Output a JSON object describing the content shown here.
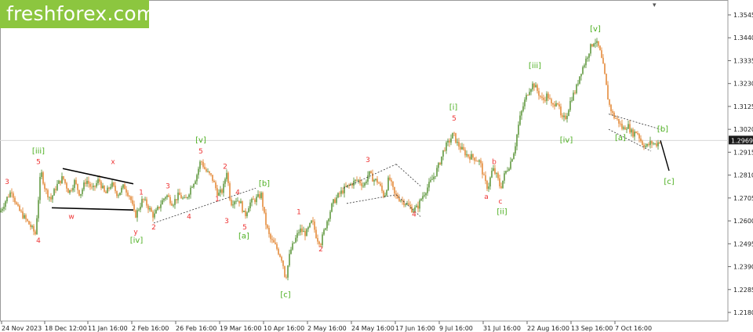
{
  "brand": {
    "logo_text": "freshforex.com"
  },
  "chart_data": {
    "type": "candlestick",
    "y_ticks": [
      "1.3545",
      "1.3440",
      "1.3335",
      "1.3230",
      "1.3125",
      "1.3020",
      "1.2915",
      "1.2810",
      "1.2705",
      "1.2600",
      "1.2495",
      "1.2390",
      "1.2285",
      "1.2180"
    ],
    "x_ticks": [
      "24 Nov 2023",
      "18 Dec 12:00",
      "11 Jan 16:00",
      "2 Feb 16:00",
      "26 Feb 16:00",
      "19 Mar 16:00",
      "10 Apr 16:00",
      "2 May 16:00",
      "24 May 16:00",
      "17 Jun 16:00",
      "9 Jul 16:00",
      "31 Jul 16:00",
      "22 Aug 16:00",
      "13 Sep 16:00",
      "7 Oct 16:00"
    ],
    "ylim": [
      1.218,
      1.3545
    ],
    "current_price": "1.2969",
    "price_path": [
      [
        0,
        1.264
      ],
      [
        8,
        1.27
      ],
      [
        15,
        1.274
      ],
      [
        22,
        1.266
      ],
      [
        30,
        1.262
      ],
      [
        38,
        1.258
      ],
      [
        45,
        1.254
      ],
      [
        48,
        1.266
      ],
      [
        52,
        1.283
      ],
      [
        58,
        1.274
      ],
      [
        65,
        1.27
      ],
      [
        72,
        1.276
      ],
      [
        80,
        1.28
      ],
      [
        88,
        1.273
      ],
      [
        95,
        1.278
      ],
      [
        102,
        1.272
      ],
      [
        110,
        1.279
      ],
      [
        118,
        1.274
      ],
      [
        126,
        1.279
      ],
      [
        134,
        1.272
      ],
      [
        142,
        1.277
      ],
      [
        150,
        1.272
      ],
      [
        158,
        1.276
      ],
      [
        166,
        1.271
      ],
      [
        172,
        1.262
      ],
      [
        176,
        1.265
      ],
      [
        182,
        1.27
      ],
      [
        188,
        1.267
      ],
      [
        196,
        1.262
      ],
      [
        205,
        1.268
      ],
      [
        212,
        1.272
      ],
      [
        220,
        1.268
      ],
      [
        228,
        1.272
      ],
      [
        236,
        1.269
      ],
      [
        244,
        1.276
      ],
      [
        250,
        1.28
      ],
      [
        256,
        1.288
      ],
      [
        262,
        1.283
      ],
      [
        270,
        1.28
      ],
      [
        278,
        1.272
      ],
      [
        284,
        1.274
      ],
      [
        289,
        1.283
      ],
      [
        294,
        1.268
      ],
      [
        300,
        1.27
      ],
      [
        306,
        1.269
      ],
      [
        312,
        1.262
      ],
      [
        318,
        1.268
      ],
      [
        326,
        1.27
      ],
      [
        333,
        1.272
      ],
      [
        338,
        1.26
      ],
      [
        344,
        1.252
      ],
      [
        352,
        1.248
      ],
      [
        360,
        1.242
      ],
      [
        364,
        1.233
      ],
      [
        370,
        1.246
      ],
      [
        376,
        1.251
      ],
      [
        382,
        1.256
      ],
      [
        390,
        1.254
      ],
      [
        398,
        1.26
      ],
      [
        404,
        1.252
      ],
      [
        409,
        1.25
      ],
      [
        416,
        1.259
      ],
      [
        424,
        1.268
      ],
      [
        432,
        1.272
      ],
      [
        440,
        1.275
      ],
      [
        448,
        1.277
      ],
      [
        456,
        1.279
      ],
      [
        464,
        1.276
      ],
      [
        470,
        1.282
      ],
      [
        476,
        1.279
      ],
      [
        482,
        1.278
      ],
      [
        490,
        1.271
      ],
      [
        496,
        1.28
      ],
      [
        503,
        1.272
      ],
      [
        510,
        1.27
      ],
      [
        518,
        1.268
      ],
      [
        526,
        1.265
      ],
      [
        532,
        1.266
      ],
      [
        538,
        1.271
      ],
      [
        546,
        1.276
      ],
      [
        554,
        1.281
      ],
      [
        560,
        1.286
      ],
      [
        566,
        1.293
      ],
      [
        572,
        1.296
      ],
      [
        578,
        1.3
      ],
      [
        582,
        1.296
      ],
      [
        588,
        1.293
      ],
      [
        596,
        1.29
      ],
      [
        604,
        1.289
      ],
      [
        612,
        1.287
      ],
      [
        618,
        1.278
      ],
      [
        622,
        1.275
      ],
      [
        628,
        1.284
      ],
      [
        634,
        1.28
      ],
      [
        638,
        1.275
      ],
      [
        644,
        1.282
      ],
      [
        650,
        1.286
      ],
      [
        656,
        1.293
      ],
      [
        662,
        1.306
      ],
      [
        668,
        1.314
      ],
      [
        674,
        1.32
      ],
      [
        680,
        1.323
      ],
      [
        686,
        1.319
      ],
      [
        692,
        1.315
      ],
      [
        698,
        1.318
      ],
      [
        704,
        1.312
      ],
      [
        710,
        1.316
      ],
      [
        716,
        1.306
      ],
      [
        722,
        1.308
      ],
      [
        728,
        1.316
      ],
      [
        734,
        1.32
      ],
      [
        740,
        1.328
      ],
      [
        746,
        1.333
      ],
      [
        752,
        1.339
      ],
      [
        758,
        1.343
      ],
      [
        764,
        1.339
      ],
      [
        770,
        1.329
      ],
      [
        776,
        1.314
      ],
      [
        782,
        1.308
      ],
      [
        788,
        1.306
      ],
      [
        794,
        1.302
      ],
      [
        800,
        1.304
      ],
      [
        806,
        1.3
      ],
      [
        812,
        1.301
      ],
      [
        818,
        1.296
      ],
      [
        824,
        1.294
      ],
      [
        830,
        1.296
      ],
      [
        836,
        1.295
      ],
      [
        842,
        1.2969
      ]
    ],
    "wave_labels": [
      {
        "text": "[iii]",
        "t": 49,
        "p": 1.291,
        "color": "#4caf20"
      },
      {
        "text": "5",
        "t": 49,
        "p": 1.286,
        "color": "#e33"
      },
      {
        "text": "3",
        "t": 9,
        "p": 1.277,
        "color": "#e33"
      },
      {
        "text": "4",
        "t": 49,
        "p": 1.25,
        "color": "#e33"
      },
      {
        "text": "x",
        "t": 144,
        "p": 1.286,
        "color": "#e33"
      },
      {
        "text": "w",
        "t": 91,
        "p": 1.261,
        "color": "#e33"
      },
      {
        "text": "y",
        "t": 173,
        "p": 1.254,
        "color": "#e33"
      },
      {
        "text": "[iv]",
        "t": 174,
        "p": 1.25,
        "color": "#4caf20"
      },
      {
        "text": "1",
        "t": 180,
        "p": 1.272,
        "color": "#e33"
      },
      {
        "text": "2",
        "t": 196,
        "p": 1.256,
        "color": "#e33"
      },
      {
        "text": "3",
        "t": 214,
        "p": 1.275,
        "color": "#e33"
      },
      {
        "text": "4",
        "t": 241,
        "p": 1.261,
        "color": "#e33"
      },
      {
        "text": "[v]",
        "t": 256,
        "p": 1.296,
        "color": "#4caf20"
      },
      {
        "text": "5",
        "t": 256,
        "p": 1.291,
        "color": "#e33"
      },
      {
        "text": "1",
        "t": 277,
        "p": 1.269,
        "color": "#e33"
      },
      {
        "text": "2",
        "t": 287,
        "p": 1.284,
        "color": "#e33"
      },
      {
        "text": "3",
        "t": 289,
        "p": 1.259,
        "color": "#e33"
      },
      {
        "text": "4",
        "t": 303,
        "p": 1.272,
        "color": "#e33"
      },
      {
        "text": "5",
        "t": 312,
        "p": 1.256,
        "color": "#e33"
      },
      {
        "text": "[a]",
        "t": 311,
        "p": 1.252,
        "color": "#4caf20"
      },
      {
        "text": "[b]",
        "t": 337,
        "p": 1.276,
        "color": "#4caf20"
      },
      {
        "text": "1",
        "t": 381,
        "p": 1.263,
        "color": "#e33"
      },
      {
        "text": "2",
        "t": 409,
        "p": 1.246,
        "color": "#e33"
      },
      {
        "text": "[c]",
        "t": 364,
        "p": 1.225,
        "color": "#4caf20"
      },
      {
        "text": "3",
        "t": 469,
        "p": 1.287,
        "color": "#e33"
      },
      {
        "text": "4",
        "t": 528,
        "p": 1.262,
        "color": "#e33"
      },
      {
        "text": "[i]",
        "t": 578,
        "p": 1.311,
        "color": "#4caf20"
      },
      {
        "text": "5",
        "t": 579,
        "p": 1.306,
        "color": "#e33"
      },
      {
        "text": "b",
        "t": 630,
        "p": 1.286,
        "color": "#e33"
      },
      {
        "text": "a",
        "t": 620,
        "p": 1.27,
        "color": "#e33"
      },
      {
        "text": "c",
        "t": 638,
        "p": 1.268,
        "color": "#e33"
      },
      {
        "text": "[ii]",
        "t": 640,
        "p": 1.263,
        "color": "#4caf20"
      },
      {
        "text": "[iii]",
        "t": 682,
        "p": 1.33,
        "color": "#4caf20"
      },
      {
        "text": "[iv]",
        "t": 722,
        "p": 1.296,
        "color": "#4caf20"
      },
      {
        "text": "[v]",
        "t": 759,
        "p": 1.347,
        "color": "#4caf20"
      },
      {
        "text": "[a]",
        "t": 791,
        "p": 1.297,
        "color": "#4caf20"
      },
      {
        "text": "[b]",
        "t": 845,
        "p": 1.301,
        "color": "#4caf20"
      },
      {
        "text": "[c]",
        "t": 853,
        "p": 1.277,
        "color": "#4caf20"
      }
    ],
    "solid_lines": [
      {
        "t1": 80,
        "p1": 1.284,
        "t2": 170,
        "p2": 1.277,
        "color": "#000000",
        "w": 1.6
      },
      {
        "t1": 66,
        "p1": 1.266,
        "t2": 170,
        "p2": 1.265,
        "color": "#000000",
        "w": 1.6
      },
      {
        "t1": 842,
        "p1": 1.2969,
        "t2": 853,
        "p2": 1.283,
        "color": "#000000",
        "w": 1.4
      }
    ],
    "dotted_lines": [
      {
        "t1": 196,
        "p1": 1.259,
        "t2": 326,
        "p2": 1.275
      },
      {
        "t1": 438,
        "p1": 1.275,
        "t2": 505,
        "p2": 1.286
      },
      {
        "t1": 442,
        "p1": 1.268,
        "t2": 505,
        "p2": 1.272
      },
      {
        "t1": 505,
        "p1": 1.286,
        "t2": 536,
        "p2": 1.276
      },
      {
        "t1": 505,
        "p1": 1.272,
        "t2": 536,
        "p2": 1.262
      },
      {
        "t1": 776,
        "p1": 1.309,
        "t2": 842,
        "p2": 1.302
      },
      {
        "t1": 776,
        "p1": 1.302,
        "t2": 830,
        "p2": 1.292
      }
    ]
  }
}
